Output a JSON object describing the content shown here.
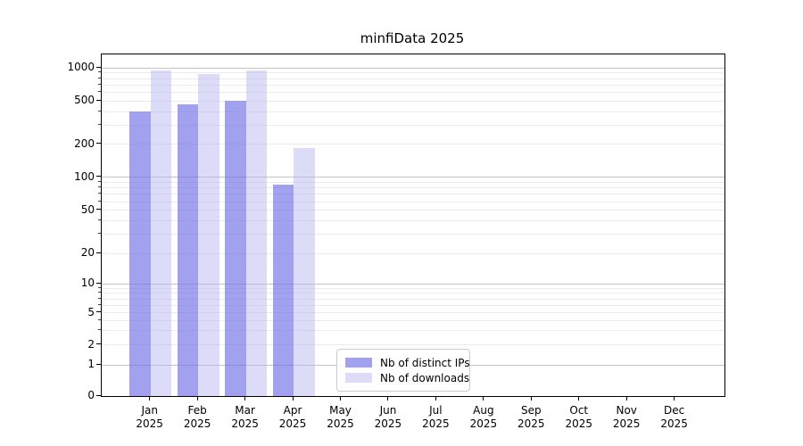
{
  "chart_data": {
    "type": "bar",
    "title": "minfiData 2025",
    "categories": [
      "Jan",
      "Feb",
      "Mar",
      "Apr",
      "May",
      "Jun",
      "Jul",
      "Aug",
      "Sep",
      "Oct",
      "Nov",
      "Dec"
    ],
    "year_label": "2025",
    "series": [
      {
        "name": "Nb of distinct IPs",
        "color": "#a1a1ef",
        "values": [
          400,
          470,
          500,
          86,
          null,
          null,
          null,
          null,
          null,
          null,
          null,
          null
        ]
      },
      {
        "name": "Nb of downloads",
        "color": "#dbdbf8",
        "values": [
          950,
          880,
          950,
          183,
          null,
          null,
          null,
          null,
          null,
          null,
          null,
          null
        ]
      }
    ],
    "y_axis": {
      "scale": "symlog",
      "ticks": [
        0,
        1,
        2,
        5,
        10,
        20,
        50,
        100,
        200,
        500,
        1000
      ],
      "ylim": [
        0,
        1300
      ]
    },
    "x_axis": {
      "tick_labels_line2": "2025"
    },
    "grid": "horizontal",
    "legend_position": "inside-bottom-center",
    "colors": {
      "grid_major": "#c3c3c3",
      "grid_minor": "#ebebeb",
      "spine": "#000000",
      "background": "#ffffff"
    }
  }
}
